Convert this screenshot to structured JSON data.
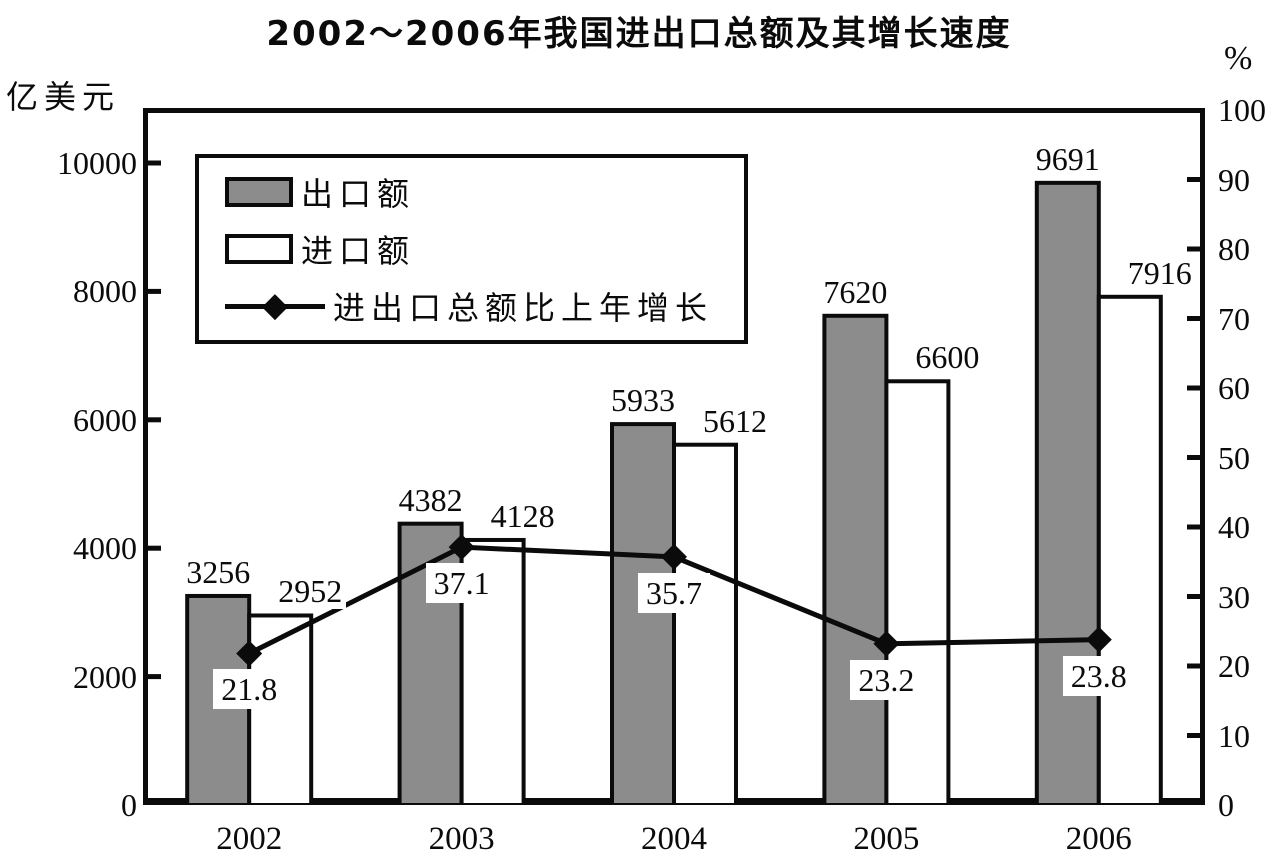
{
  "title": "2002～2006年我国进出口总额及其增长速度",
  "left_axis": {
    "unit_label": "亿美元",
    "ticks": [
      0,
      2000,
      4000,
      6000,
      8000,
      10000
    ],
    "range": [
      0,
      10000
    ]
  },
  "right_axis": {
    "unit_label": "%",
    "ticks": [
      0,
      10,
      20,
      30,
      40,
      50,
      60,
      70,
      80,
      90,
      100
    ],
    "range": [
      0,
      100
    ]
  },
  "legend": {
    "items": [
      {
        "label": "出口额",
        "type": "bar",
        "color": "#8c8c8c"
      },
      {
        "label": "进口额",
        "type": "bar",
        "color": "#ffffff"
      },
      {
        "label": "进出口总额比上年增长",
        "type": "line-diamond",
        "color": "#0b0b0b"
      }
    ]
  },
  "colors": {
    "export_bar_fill": "#8c8c8c",
    "import_bar_fill": "#ffffff",
    "line_and_border": "#0b0b0b",
    "background": "#ffffff"
  },
  "chart_data": {
    "type": "bar",
    "title": "2002～2006年我国进出口总额及其增长速度",
    "categories": [
      "2002",
      "2003",
      "2004",
      "2005",
      "2006"
    ],
    "series": [
      {
        "name": "出口额",
        "type": "bar",
        "axis": "left",
        "color": "#8c8c8c",
        "values": [
          3256,
          4382,
          5933,
          7620,
          9691
        ]
      },
      {
        "name": "进口额",
        "type": "bar",
        "axis": "left",
        "color": "#ffffff",
        "values": [
          2952,
          4128,
          5612,
          6600,
          7916
        ]
      },
      {
        "name": "进出口总额比上年增长",
        "type": "line",
        "axis": "right",
        "color": "#0b0b0b",
        "marker": "diamond",
        "values": [
          21.8,
          37.1,
          35.7,
          23.2,
          23.8
        ]
      }
    ],
    "xlabel": "",
    "ylabel_left": "亿美元",
    "ylabel_right": "%",
    "ylim_left": [
      0,
      10000
    ],
    "ylim_right": [
      0,
      100
    ],
    "grid": false,
    "legend_position": "top-left",
    "data_labels_shown": true
  }
}
